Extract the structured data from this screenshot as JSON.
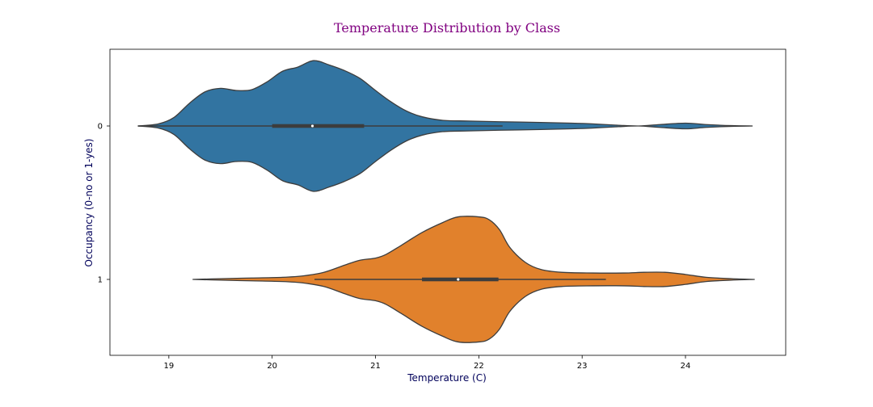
{
  "chart_data": {
    "type": "violin",
    "orientation": "horizontal",
    "title": "Temperature Distribution by Class",
    "xlabel": "Temperature (C)",
    "ylabel": "Occupancy (0-no or 1-yes)",
    "xlim": [
      18.43,
      24.97
    ],
    "xticks": [
      19,
      20,
      21,
      22,
      23,
      24
    ],
    "categories": [
      "0",
      "1"
    ],
    "grid": false,
    "legend": "none",
    "colors": {
      "title": "#800080",
      "axis_label": "#00005a",
      "tick_label": "#000000",
      "violin_edge": "#3d3d3d",
      "frame": "#000000"
    },
    "violins": [
      {
        "category": "0",
        "color": "#3274a1",
        "min": 18.7,
        "q1": 20.0,
        "median": 20.39,
        "q3": 20.89,
        "whisker_low": 18.7,
        "whisker_high": 22.23,
        "max": 24.65,
        "density": [
          [
            18.7,
            0.0
          ],
          [
            18.9,
            0.03
          ],
          [
            19.05,
            0.12
          ],
          [
            19.2,
            0.32
          ],
          [
            19.35,
            0.48
          ],
          [
            19.5,
            0.53
          ],
          [
            19.65,
            0.5
          ],
          [
            19.8,
            0.51
          ],
          [
            19.95,
            0.62
          ],
          [
            20.1,
            0.77
          ],
          [
            20.25,
            0.83
          ],
          [
            20.4,
            0.92
          ],
          [
            20.55,
            0.86
          ],
          [
            20.7,
            0.78
          ],
          [
            20.85,
            0.67
          ],
          [
            21.0,
            0.5
          ],
          [
            21.15,
            0.34
          ],
          [
            21.3,
            0.21
          ],
          [
            21.45,
            0.13
          ],
          [
            21.65,
            0.08
          ],
          [
            21.9,
            0.07
          ],
          [
            22.2,
            0.06
          ],
          [
            22.6,
            0.05
          ],
          [
            22.9,
            0.04
          ],
          [
            23.1,
            0.03
          ],
          [
            23.35,
            0.01
          ],
          [
            23.55,
            0.0
          ],
          [
            23.75,
            0.02
          ],
          [
            24.0,
            0.04
          ],
          [
            24.2,
            0.02
          ],
          [
            24.45,
            0.005
          ],
          [
            24.65,
            0.0
          ]
        ]
      },
      {
        "category": "1",
        "color": "#e1812c",
        "min": 19.23,
        "q1": 21.45,
        "median": 21.8,
        "q3": 22.19,
        "whisker_low": 20.41,
        "whisker_high": 23.23,
        "max": 24.67,
        "density": [
          [
            19.23,
            0.0
          ],
          [
            19.5,
            0.01
          ],
          [
            19.8,
            0.02
          ],
          [
            20.1,
            0.03
          ],
          [
            20.3,
            0.05
          ],
          [
            20.5,
            0.1
          ],
          [
            20.7,
            0.2
          ],
          [
            20.85,
            0.27
          ],
          [
            21.0,
            0.3
          ],
          [
            21.1,
            0.35
          ],
          [
            21.25,
            0.48
          ],
          [
            21.45,
            0.66
          ],
          [
            21.65,
            0.8
          ],
          [
            21.8,
            0.88
          ],
          [
            22.0,
            0.88
          ],
          [
            22.1,
            0.84
          ],
          [
            22.2,
            0.7
          ],
          [
            22.3,
            0.45
          ],
          [
            22.45,
            0.24
          ],
          [
            22.6,
            0.14
          ],
          [
            22.8,
            0.1
          ],
          [
            23.1,
            0.09
          ],
          [
            23.4,
            0.09
          ],
          [
            23.6,
            0.1
          ],
          [
            23.8,
            0.1
          ],
          [
            24.0,
            0.07
          ],
          [
            24.2,
            0.03
          ],
          [
            24.45,
            0.01
          ],
          [
            24.67,
            0.0
          ]
        ]
      }
    ]
  }
}
